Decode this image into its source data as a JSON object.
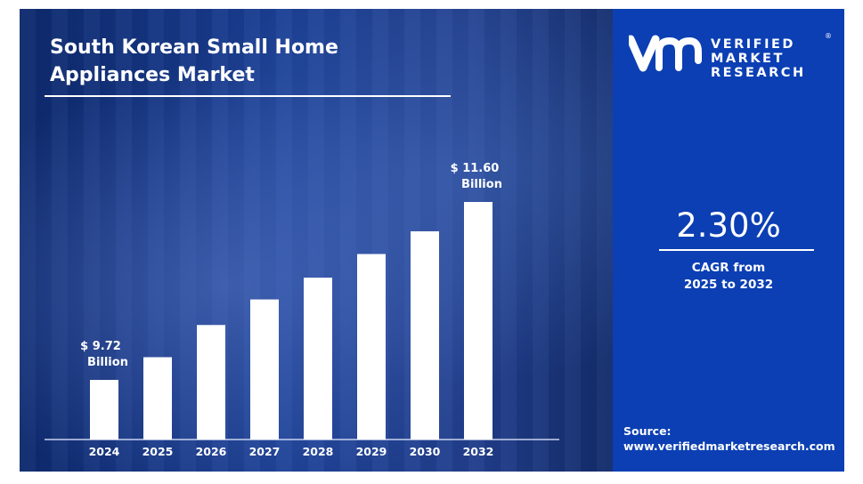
{
  "title": "South Korean Small Home Appliances Market",
  "title_lines": [
    "South Korean Small Home",
    "Appliances Market"
  ],
  "brand": {
    "lines": [
      "VERIFIED",
      "MARKET",
      "RESEARCH"
    ],
    "registered": "®",
    "logo_text": "vmr"
  },
  "cagr": {
    "value": "2.30%",
    "label_lines": [
      "CAGR from",
      "2025 to 2032"
    ]
  },
  "source": {
    "label": "Source:",
    "url": "www.verifiedmarketresearch.com"
  },
  "colors": {
    "panel": "#0b3fb3",
    "bar": "#ffffff",
    "background": "#1b3f95"
  },
  "chart_data": {
    "type": "bar",
    "title": "South Korean Small Home Appliances Market",
    "categories": [
      "2024",
      "2025",
      "2026",
      "2027",
      "2028",
      "2029",
      "2030",
      "2032"
    ],
    "values": [
      9.72,
      9.96,
      10.3,
      10.57,
      10.8,
      11.05,
      11.29,
      11.6
    ],
    "unit": "USD Billion",
    "ylim": [
      9.09,
      11.6
    ],
    "xlabel": "",
    "ylabel": "",
    "grid": false,
    "annotations": [
      {
        "category": "2024",
        "lines": [
          "$ 9.72",
          "Billion"
        ]
      },
      {
        "category": "2032",
        "lines": [
          "$ 11.60",
          "Billion"
        ]
      }
    ]
  }
}
